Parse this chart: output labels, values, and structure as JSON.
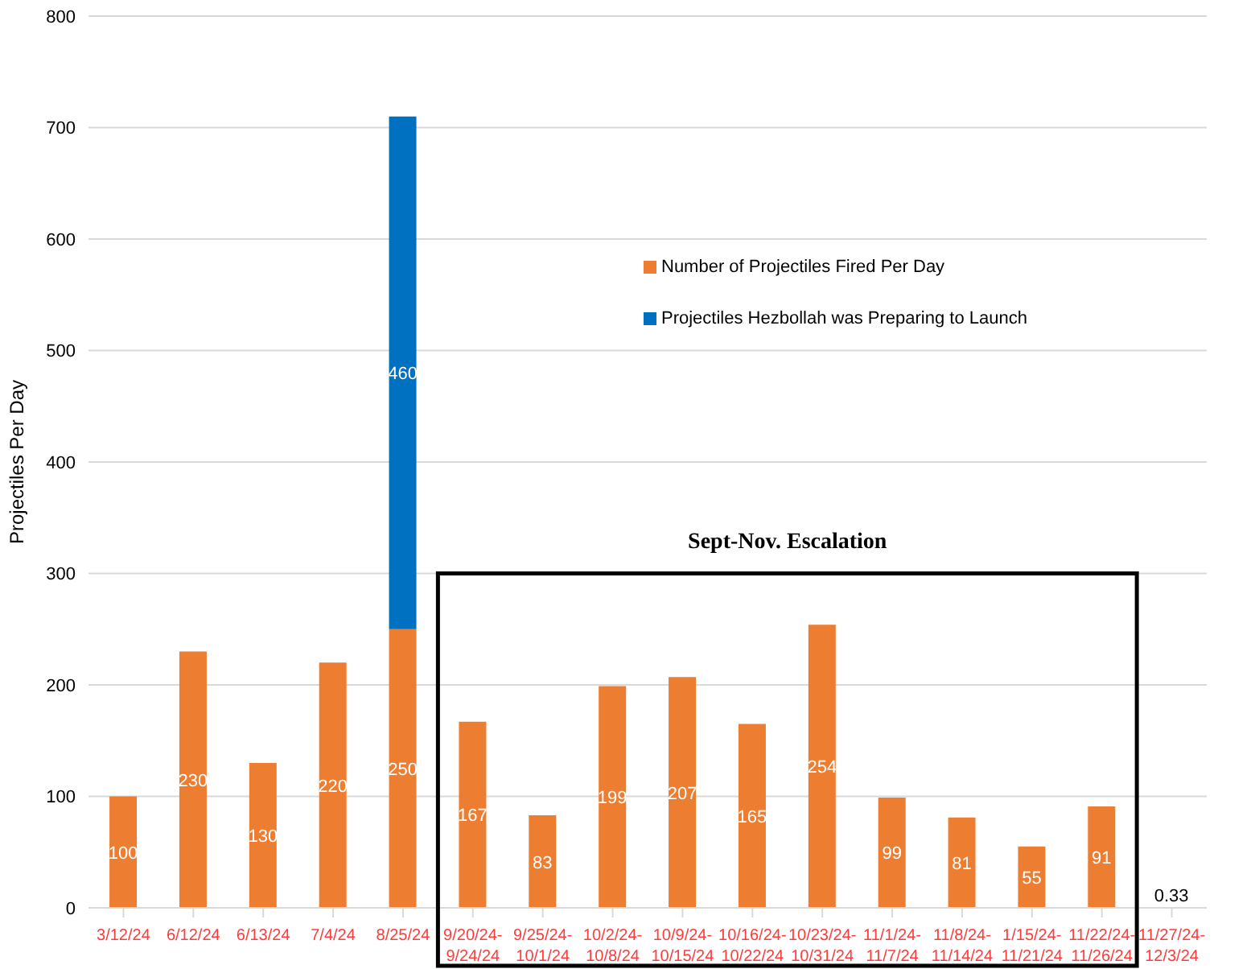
{
  "chart_data": {
    "type": "bar",
    "stacked": true,
    "ylabel": "Projectiles Per Day",
    "categories": [
      "3/12/24",
      "6/12/24",
      "6/13/24",
      "7/4/24",
      "8/25/24",
      "9/20/24-9/24/24",
      "9/25/24-10/1/24",
      "10/2/24-10/8/24",
      "10/9/24-10/15/24",
      "10/16/24-10/22/24",
      "10/23/24-10/31/24",
      "11/1/24-11/7/24",
      "11/8/24-11/14/24",
      "1/15/24-11/21/24",
      "11/22/24-11/26/24",
      "11/27/24-12/3/24"
    ],
    "series": [
      {
        "name": "Number of Projectiles Fired Per Day",
        "color": "#ed7d31",
        "values": [
          100,
          230,
          130,
          220,
          250,
          167,
          83,
          199,
          207,
          165,
          254,
          99,
          81,
          55,
          91,
          0.33
        ]
      },
      {
        "name": "Projectiles Hezbollah was Preparing to Launch",
        "color": "#0070c0",
        "values": [
          null,
          null,
          null,
          null,
          460,
          null,
          null,
          null,
          null,
          null,
          null,
          null,
          null,
          null,
          null,
          null
        ]
      }
    ],
    "ylim": [
      0,
      800
    ],
    "yticks": [
      0,
      100,
      200,
      300,
      400,
      500,
      600,
      700,
      800
    ],
    "grid": "y",
    "legend": "right",
    "data_labels": true,
    "annotations": [
      "Sept-Nov. Escalation"
    ]
  }
}
